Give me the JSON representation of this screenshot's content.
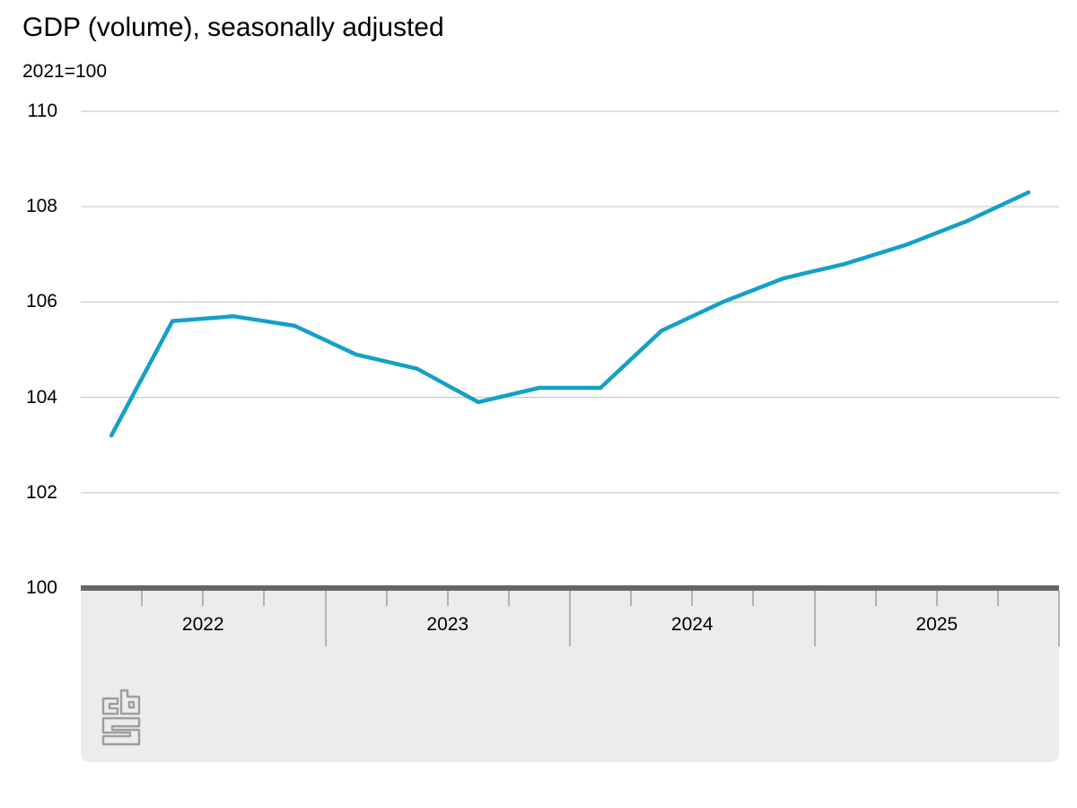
{
  "chart_data": {
    "type": "line",
    "title": "GDP (volume), seasonally adjusted",
    "subtitle_unit": "2021=100",
    "categories": [
      "2022 Q1",
      "2022 Q2",
      "2022 Q3",
      "2022 Q4",
      "2023 Q1",
      "2023 Q2",
      "2023 Q3",
      "2023 Q4",
      "2024 Q1",
      "2024 Q2",
      "2024 Q3",
      "2024 Q4",
      "2025 Q1",
      "2025 Q2",
      "2025 Q3",
      "2025 Q4"
    ],
    "series": [
      {
        "name": "GDP (volume), seasonally adjusted",
        "values": [
          103.2,
          105.6,
          105.7,
          105.5,
          104.9,
          104.6,
          103.9,
          104.2,
          104.2,
          105.4,
          106.0,
          106.5,
          106.8,
          107.2,
          107.7,
          108.3
        ]
      }
    ],
    "x_year_labels": [
      "2022",
      "2023",
      "2024",
      "2025"
    ],
    "yticks": [
      100,
      102,
      104,
      106,
      108,
      110
    ],
    "ylim": [
      100,
      110
    ],
    "grid": true,
    "legend": false
  },
  "branding": {
    "logo": "cbs-logo"
  },
  "colors": {
    "line": "#14a0c7",
    "grid": "#c9c9c9",
    "axis_bar": "#666666",
    "band": "#ececec",
    "tick": "#b3b3b3",
    "text": "#000000",
    "logo": "#9e9e9e"
  }
}
